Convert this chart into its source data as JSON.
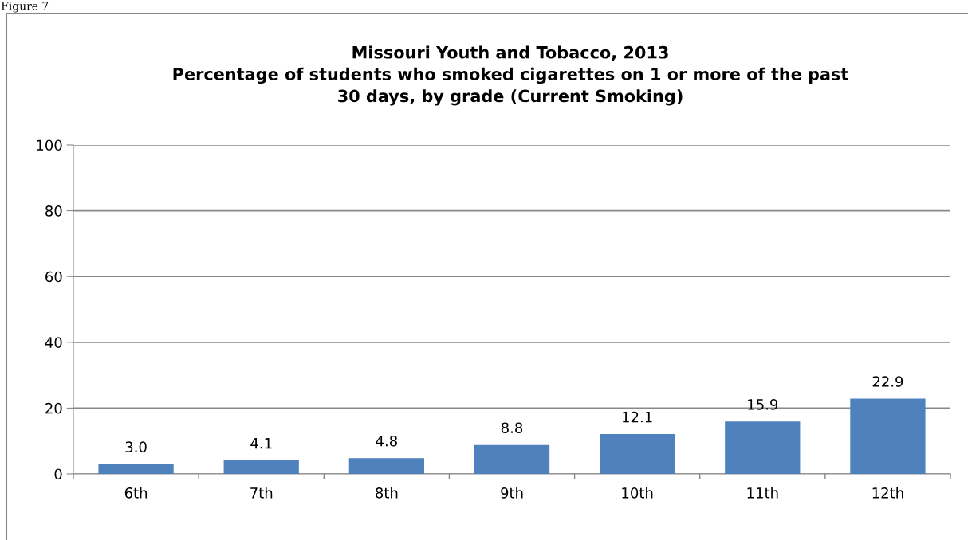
{
  "chart_data": {
    "type": "bar",
    "title": "Missouri Youth and Tobacco, 2013\nPercentage of students who smoked cigarettes on 1 or more of the past\n30 days, by grade (Current Smoking)",
    "annotations": [
      "Figure 7"
    ],
    "categories": [
      "6th",
      "7th",
      "8th",
      "9th",
      "10th",
      "11th",
      "12th"
    ],
    "values": [
      3.0,
      4.1,
      4.8,
      8.8,
      12.1,
      15.9,
      22.9
    ],
    "value_labels": [
      "3.0",
      "4.1",
      "4.8",
      "8.8",
      "12.1",
      "15.9",
      "22.9"
    ],
    "color": "#4f81bd",
    "ylim": [
      0,
      100
    ],
    "yticks": [
      0,
      20,
      40,
      60,
      80,
      100
    ],
    "grid": "y",
    "legend": false
  }
}
